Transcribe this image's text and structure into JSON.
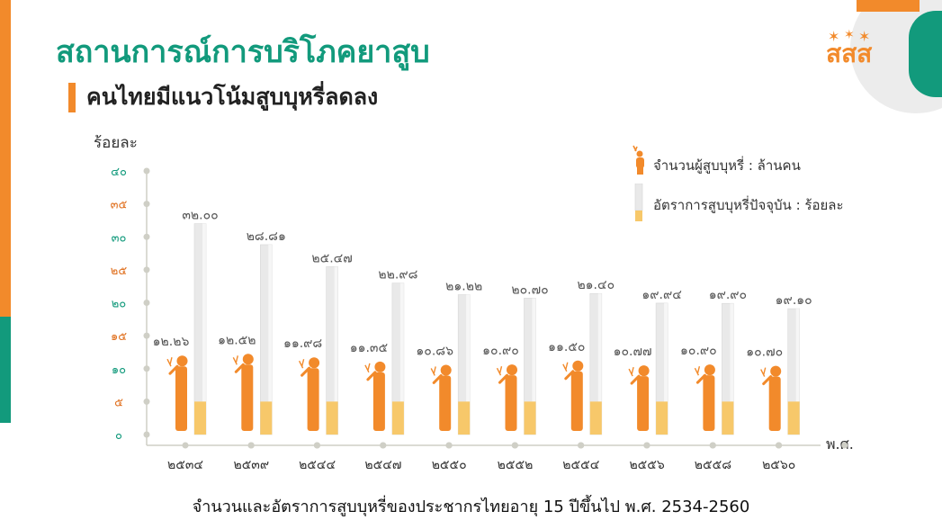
{
  "header": {
    "title": "สถานการณ์การบริโภคยาสูบ",
    "subtitle": "คนไทยมีแนวโน้มสูบบุหรี่ลดลง",
    "logo_text": "สสส"
  },
  "caption": "จำนวนและอัตราการสูบบุหรี่ของประชากรไทยอายุ 15  ปีขึ้นไป พ.ศ. 2534-2560",
  "colors": {
    "title": "#129a7c",
    "orange": "#f28a2b",
    "cig_body": "#e9e9e9",
    "filter": "#f7c86a",
    "axis": "#cfcfc6",
    "green_tick": "#129a7c",
    "orange_tick": "#e0701f"
  },
  "chart_data": {
    "type": "bar",
    "ylabel": "ร้อยละ",
    "xlabel": "พ.ศ.",
    "ylim": [
      0,
      40
    ],
    "yticks": [
      "๐",
      "๕",
      "๑๐",
      "๑๕",
      "๒๐",
      "๒๕",
      "๓๐",
      "๓๕",
      "๔๐"
    ],
    "categories": [
      "๒๕๓๔",
      "๒๕๓๙",
      "๒๕๔๔",
      "๒๕๔๗",
      "๒๕๕๐",
      "๒๕๕๒",
      "๒๕๕๔",
      "๒๕๕๖",
      "๒๕๕๘",
      "๒๕๖๐"
    ],
    "series": [
      {
        "name": "จำนวนผู้สูบบุหรี่ : ล้านคน",
        "values": [
          12.26,
          12.52,
          11.98,
          11.35,
          10.86,
          10.9,
          11.5,
          10.77,
          10.9,
          10.7
        ],
        "labels": [
          "๑๒.๒๖",
          "๑๒.๕๒",
          "๑๑.๙๘",
          "๑๑.๓๕",
          "๑๐.๘๖",
          "๑๐.๙๐",
          "๑๑.๕๐",
          "๑๐.๗๗",
          "๑๐.๙๐",
          "๑๐.๗๐"
        ]
      },
      {
        "name": "อัตราการสูบบุหรี่ปัจจุบัน : ร้อยละ",
        "values": [
          32.0,
          28.81,
          25.47,
          22.98,
          21.22,
          20.7,
          21.4,
          19.94,
          19.9,
          19.1
        ],
        "labels": [
          "๓๒.๐๐",
          "๒๘.๘๑",
          "๒๕.๔๗",
          "๒๒.๙๘",
          "๒๑.๒๒",
          "๒๐.๗๐",
          "๒๑.๔๐",
          "๑๙.๙๔",
          "๑๙.๙๐",
          "๑๙.๑๐"
        ]
      }
    ],
    "legend_position": "top-right",
    "grid": false
  }
}
